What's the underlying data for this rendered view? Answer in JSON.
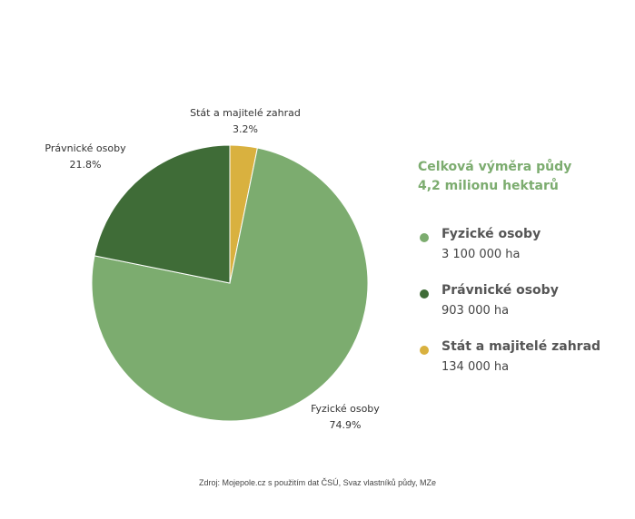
{
  "chart_data": {
    "type": "pie",
    "slices": [
      {
        "name": "Fyzické osoby",
        "label": "Fyzické osoby",
        "percent_label": "74.9%",
        "value": 74.9,
        "color": "#7cac6f"
      },
      {
        "name": "Právnické osoby",
        "label": "Právnické osoby",
        "percent_label": "21.8%",
        "value": 21.8,
        "color": "#3f6c37"
      },
      {
        "name": "Stát a majitelé zahrad",
        "label": "Stát a majitelé zahrad",
        "percent_label": "3.2%",
        "value": 3.2,
        "color": "#d9b13f"
      }
    ]
  },
  "summary": {
    "title_line1": "Celková výměra půdy",
    "title_line2": "4,2 milionu hektarů"
  },
  "legend": {
    "items": [
      {
        "name": "Fyzické osoby",
        "value": "3 100 000 ha",
        "color": "#7cac6f"
      },
      {
        "name": "Právnické osoby",
        "value": "903 000 ha",
        "color": "#3f6c37"
      },
      {
        "name": "Stát a majitelé zahrad",
        "value": "134 000 ha",
        "color": "#d9b13f"
      }
    ]
  },
  "source": "Zdroj: Mojepole.cz s použitím dat ČSÚ, Svaz vlastníků půdy, MZe"
}
